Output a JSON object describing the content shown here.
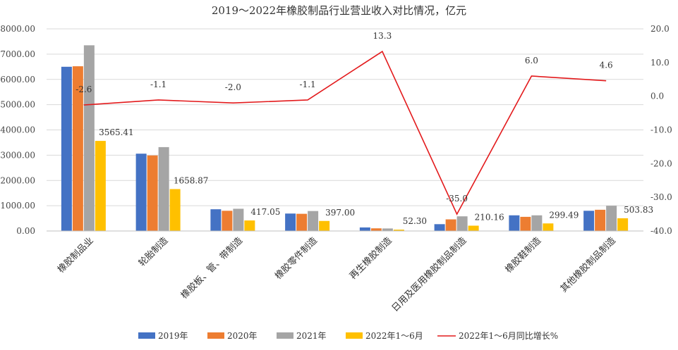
{
  "chart_data": {
    "type": "bar",
    "title": "2019～2022年橡胶制品行业营业收入对比情况，亿元",
    "categories": [
      "橡胶制品业",
      "轮胎制造",
      "橡胶板、管、带制造",
      "橡胶零件制造",
      "再生橡胶制造",
      "日用及医用橡胶制品制造",
      "橡胶鞋制造",
      "其他橡胶制品制造"
    ],
    "series": [
      {
        "name": "2019年",
        "color": "#4472C4",
        "values": [
          6500,
          3060,
          860,
          690,
          140,
          270,
          620,
          800
        ]
      },
      {
        "name": "2020年",
        "color": "#ED7D31",
        "values": [
          6520,
          2990,
          800,
          680,
          105,
          460,
          560,
          840
        ]
      },
      {
        "name": "2021年",
        "color": "#A5A5A5",
        "values": [
          7350,
          3320,
          880,
          790,
          100,
          580,
          620,
          1000
        ]
      },
      {
        "name": "2022年1～6月",
        "color": "#FFC000",
        "values": [
          3565.41,
          1658.87,
          417.05,
          397.0,
          52.3,
          210.16,
          299.49,
          503.83
        ]
      }
    ],
    "bar_labels": [
      "3565.41",
      "1658.87",
      "417.05",
      "397.00",
      "52.30",
      "210.16",
      "299.49",
      "503.83"
    ],
    "line_series": {
      "name": "2022年1～6月同比增长%",
      "color": "#E31A1C",
      "values": [
        -2.6,
        -1.1,
        -2.0,
        -1.1,
        13.3,
        -35.0,
        6.0,
        4.6
      ],
      "labels": [
        "-2.6",
        "-1.1",
        "-2.0",
        "-1.1",
        "13.3",
        "-35.0",
        "6.0",
        "4.6"
      ]
    },
    "y_left": {
      "min": 0,
      "max": 8000,
      "ticks": [
        "0.00",
        "1000.00",
        "2000.00",
        "3000.00",
        "4000.00",
        "5000.00",
        "6000.00",
        "7000.00",
        "8000.00"
      ]
    },
    "y_right": {
      "min": -40,
      "max": 20,
      "ticks": [
        "-40.0",
        "-30.0",
        "-20.0",
        "-10.0",
        "0.0",
        "10.0",
        "20.0"
      ]
    },
    "grid": true,
    "legend_position": "bottom"
  }
}
